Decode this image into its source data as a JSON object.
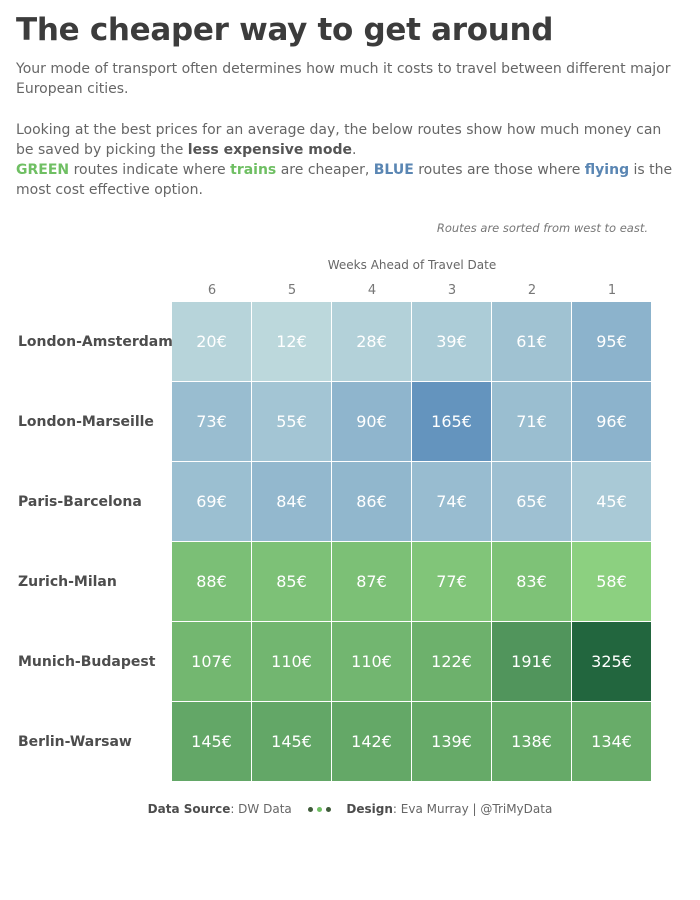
{
  "title": "The cheaper way to get around",
  "intro": {
    "line1": "Your mode of transport often determines how much it costs to travel between different major European cities.",
    "p2_a": "Looking at the best prices for an average day, the below routes show how much money can be saved by picking the ",
    "p2_b": "less expensive mode",
    "p2_c": ".",
    "green_word": "GREEN",
    "p2_d": " routes indicate where ",
    "trains_word": "trains",
    "p2_e": " are cheaper, ",
    "blue_word": "BLUE",
    "p2_f": " routes are those where ",
    "flying_word": "flying",
    "p2_g": " is the most cost effective option."
  },
  "sort_note": "Routes are sorted from west to east.",
  "colors": {
    "train_green": "#6fbf63",
    "flight_blue": "#5a86b3",
    "dot_dark": "#3f5b3a",
    "dot_green": "#6fbf63"
  },
  "footer": {
    "source_label": "Data Source",
    "source_value": ": DW Data",
    "design_label": "Design",
    "design_value": ": Eva Murray | @TriMyData"
  },
  "chart_data": {
    "type": "heatmap",
    "x_title": "Weeks Ahead of Travel Date",
    "columns": [
      "6",
      "5",
      "4",
      "3",
      "2",
      "1"
    ],
    "rows": [
      {
        "route": "London-Amsterdam",
        "mode": "flight",
        "values": [
          20,
          12,
          28,
          39,
          61,
          95
        ]
      },
      {
        "route": "London-Marseille",
        "mode": "flight",
        "values": [
          73,
          55,
          90,
          165,
          71,
          96
        ]
      },
      {
        "route": "Paris-Barcelona",
        "mode": "flight",
        "values": [
          69,
          84,
          86,
          74,
          65,
          45
        ]
      },
      {
        "route": "Zurich-Milan",
        "mode": "train",
        "values": [
          88,
          85,
          87,
          77,
          83,
          58
        ]
      },
      {
        "route": "Munich-Budapest",
        "mode": "train",
        "values": [
          107,
          110,
          110,
          122,
          191,
          325
        ]
      },
      {
        "route": "Berlin-Warsaw",
        "mode": "train",
        "values": [
          145,
          145,
          142,
          139,
          138,
          134
        ]
      }
    ],
    "unit_suffix": "€"
  }
}
